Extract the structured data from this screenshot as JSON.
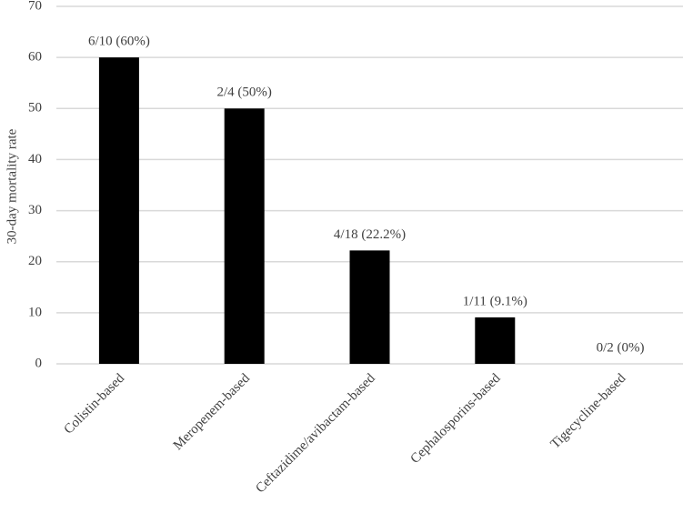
{
  "chart_data": {
    "type": "bar",
    "y_label": "30-day mortality rate",
    "categories": [
      "Colistin-based",
      "Meropenem-based",
      "Ceftazidime/avibactam-based",
      "Cephalosporins-based",
      "Tigecycline-based"
    ],
    "values": [
      60,
      50,
      22.2,
      9.1,
      0
    ],
    "value_labels": [
      "6/10 (60%)",
      "2/4 (50%)",
      "4/18 (22.2%)",
      "1/11 (9.1%)",
      "0/2 (0%)"
    ],
    "color": "#000000",
    "ylim": [
      0,
      70
    ],
    "yticks": [
      0,
      10,
      20,
      30,
      40,
      50,
      60,
      70
    ],
    "grid": true
  }
}
